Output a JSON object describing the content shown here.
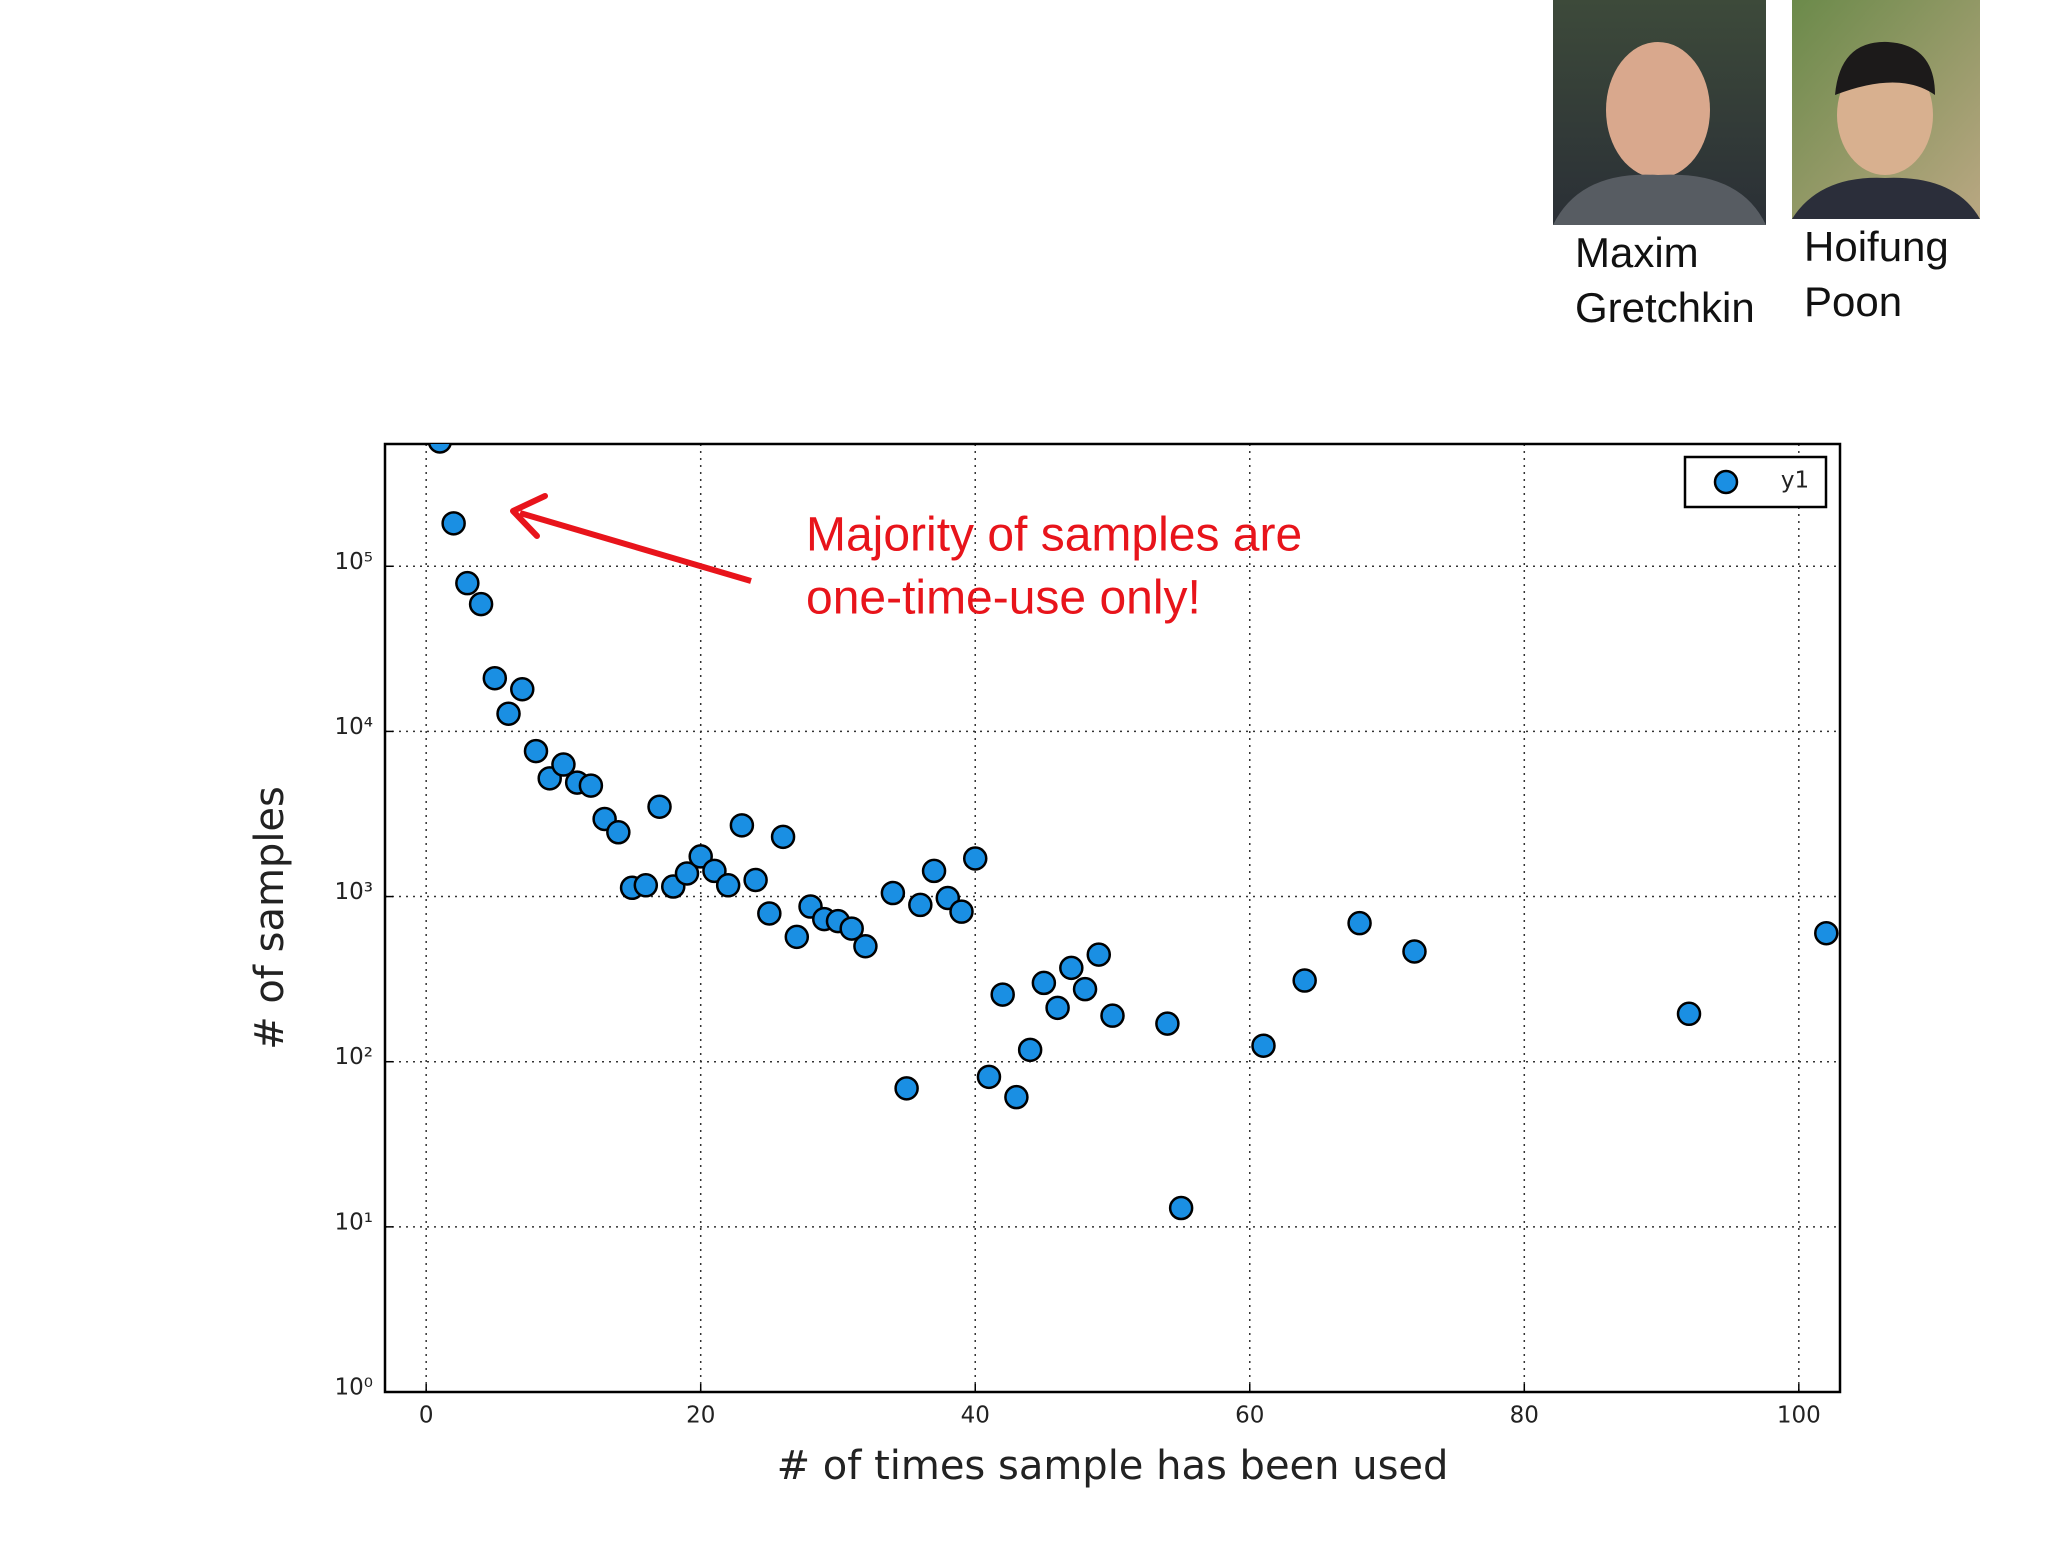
{
  "people": [
    {
      "name_lines": [
        "Maxim",
        "Gretchkin"
      ]
    },
    {
      "name_lines": [
        "Hoifung",
        "Poon"
      ]
    }
  ],
  "chart_data": {
    "type": "scatter",
    "xlabel": "# of times sample has been used",
    "ylabel": "# of samples",
    "annotation_lines": [
      "Majority of samples are",
      "one-time-use only!"
    ],
    "log_y": true,
    "grid": true,
    "legend": "upper right",
    "xlim": [
      -3,
      103
    ],
    "xticks": [
      0,
      20,
      40,
      60,
      80,
      100
    ],
    "ylim": [
      1,
      550000
    ],
    "yticks": [
      {
        "value": 1,
        "label": "10⁰"
      },
      {
        "value": 10,
        "label": "10¹"
      },
      {
        "value": 100,
        "label": "10²"
      },
      {
        "value": 1000,
        "label": "10³"
      },
      {
        "value": 10000,
        "label": "10⁴"
      },
      {
        "value": 100000,
        "label": "10⁵"
      }
    ],
    "series": [
      {
        "name": "y1",
        "color": "#1a8fe3",
        "x": [
          1,
          2,
          3,
          4,
          5,
          6,
          7,
          8,
          9,
          10,
          11,
          12,
          13,
          14,
          15,
          16,
          17,
          18,
          19,
          20,
          21,
          22,
          23,
          24,
          25,
          26,
          27,
          28,
          29,
          30,
          31,
          32,
          34,
          35,
          36,
          37,
          38,
          39,
          40,
          41,
          42,
          43,
          44,
          45,
          46,
          47,
          48,
          49,
          50,
          54,
          55,
          61,
          64,
          68,
          72,
          92,
          102
        ],
        "values": [
          570000,
          182000,
          79000,
          59000,
          21000,
          12800,
          18000,
          7600,
          5200,
          6300,
          4900,
          4700,
          2950,
          2450,
          1130,
          1170,
          3500,
          1150,
          1380,
          1750,
          1430,
          1170,
          2700,
          1260,
          790,
          2300,
          570,
          870,
          730,
          710,
          640,
          500,
          1050,
          69,
          890,
          1430,
          980,
          810,
          1700,
          81,
          255,
          61,
          118,
          300,
          212,
          370,
          275,
          445,
          190,
          170,
          13,
          125,
          310,
          690,
          465,
          195,
          600
        ]
      }
    ]
  }
}
